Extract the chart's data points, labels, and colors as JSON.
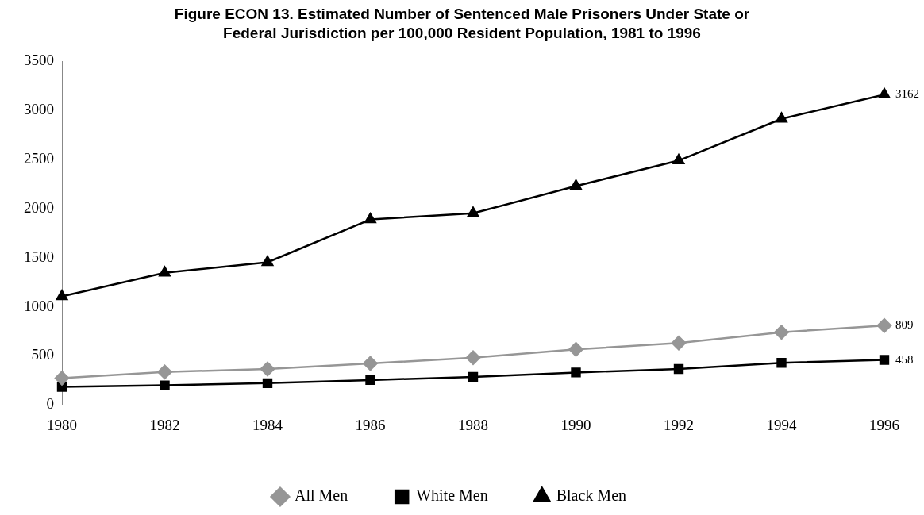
{
  "chart_data": {
    "type": "line",
    "title": "Figure ECON 13.  Estimated Number of Sentenced Male Prisoners Under State or Federal Jurisdiction per 100,000 Resident Population, 1981 to 1996",
    "x": [
      1980,
      1982,
      1984,
      1986,
      1988,
      1990,
      1992,
      1994,
      1996
    ],
    "xlim": [
      1980,
      1996
    ],
    "xticks": [
      1980,
      1982,
      1984,
      1986,
      1988,
      1990,
      1992,
      1994,
      1996
    ],
    "ylim": [
      0,
      3500
    ],
    "yticks": [
      0,
      500,
      1000,
      1500,
      2000,
      2500,
      3000,
      3500
    ],
    "grid": false,
    "legend": "bottom",
    "series": [
      {
        "name": "All Men",
        "color": "#969696",
        "marker": "diamond",
        "values": [
          272,
          335,
          366,
          423,
          480,
          565,
          630,
          740,
          809
        ],
        "value_labels": [
          null,
          null,
          null,
          null,
          null,
          null,
          null,
          null,
          "809"
        ]
      },
      {
        "name": "White Men",
        "color": "#000000",
        "marker": "square",
        "values": [
          183,
          199,
          221,
          253,
          285,
          330,
          365,
          428,
          458
        ],
        "value_labels": [
          null,
          null,
          null,
          null,
          null,
          null,
          null,
          null,
          "458"
        ]
      },
      {
        "name": "Black Men",
        "color": "#000000",
        "marker": "triangle",
        "values": [
          1105,
          1346,
          1453,
          1889,
          1952,
          2230,
          2490,
          2915,
          3162
        ],
        "value_labels": [
          null,
          null,
          null,
          null,
          null,
          null,
          null,
          null,
          "3162"
        ]
      }
    ]
  }
}
